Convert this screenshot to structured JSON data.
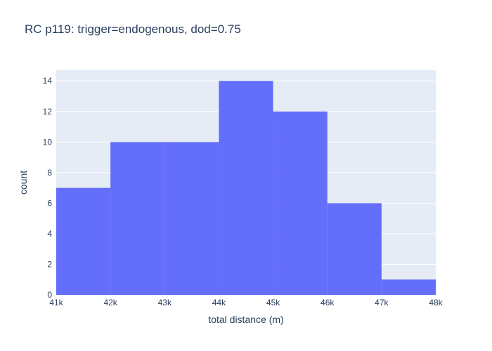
{
  "chart_data": {
    "type": "bar",
    "title": "RC p119: trigger=endogenous, dod=0.75",
    "xlabel": "total distance (m)",
    "ylabel": "count",
    "bin_edges": [
      41000,
      42000,
      43000,
      44000,
      45000,
      46000,
      47000,
      48000
    ],
    "values": [
      7,
      10,
      10,
      14,
      12,
      6,
      1
    ],
    "xlim": [
      41000,
      48000
    ],
    "ylim": [
      0,
      14.7
    ],
    "x_tick_values": [
      41000,
      42000,
      43000,
      44000,
      45000,
      46000,
      47000,
      48000
    ],
    "x_tick_labels": [
      "41k",
      "42k",
      "43k",
      "44k",
      "45k",
      "46k",
      "47k",
      "48k"
    ],
    "y_tick_values": [
      0,
      2,
      4,
      6,
      8,
      10,
      12,
      14
    ],
    "y_tick_labels": [
      "0",
      "2",
      "4",
      "6",
      "8",
      "10",
      "12",
      "14"
    ],
    "grid": true,
    "colors": {
      "bar": "#636efa",
      "plot_bg": "#e5ecf6",
      "grid": "#ffffff",
      "text": "#2a3f5f"
    }
  }
}
